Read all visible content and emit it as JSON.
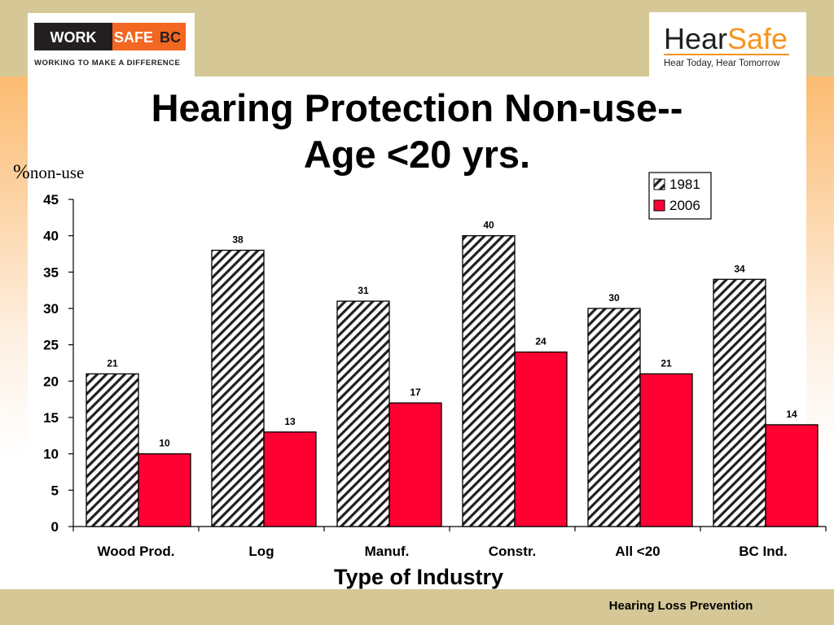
{
  "slide": {
    "title_line1": "Hearing Protection Non-use--",
    "title_line2": "Age <20 yrs.",
    "footer": "Hearing Loss Prevention"
  },
  "logos": {
    "left": {
      "part1": "WORK",
      "part2": "SAFE",
      "part3": "BC",
      "tagline": "WORKING TO MAKE A DIFFERENCE",
      "colors": {
        "dark": "#231F20",
        "orange": "#F26722"
      }
    },
    "right": {
      "part1": "Hear",
      "part2": "Safe",
      "tagline": "Hear Today, Hear Tomorrow",
      "colors": {
        "dark": "#231F20",
        "orange": "#F7941D"
      }
    }
  },
  "chart_data": {
    "type": "bar",
    "ylabel_symbol": "%",
    "ylabel_text": "non-use",
    "xlabel": "Type of Industry",
    "categories": [
      "Wood Prod.",
      "Log",
      "Manuf.",
      "Constr.",
      "All <20",
      "BC Ind."
    ],
    "series": [
      {
        "name": "1981",
        "values": [
          21,
          38,
          31,
          40,
          30,
          34
        ],
        "fill": "hatched",
        "color": "#231F20"
      },
      {
        "name": "2006",
        "values": [
          10,
          13,
          17,
          24,
          21,
          14
        ],
        "fill": "solid",
        "color": "#FF0033"
      }
    ],
    "ylim": [
      0,
      45
    ],
    "yticks": [
      0,
      5,
      10,
      15,
      20,
      25,
      30,
      35,
      40,
      45
    ],
    "grid": false,
    "legend_position": "top-right",
    "data_labels": true
  }
}
